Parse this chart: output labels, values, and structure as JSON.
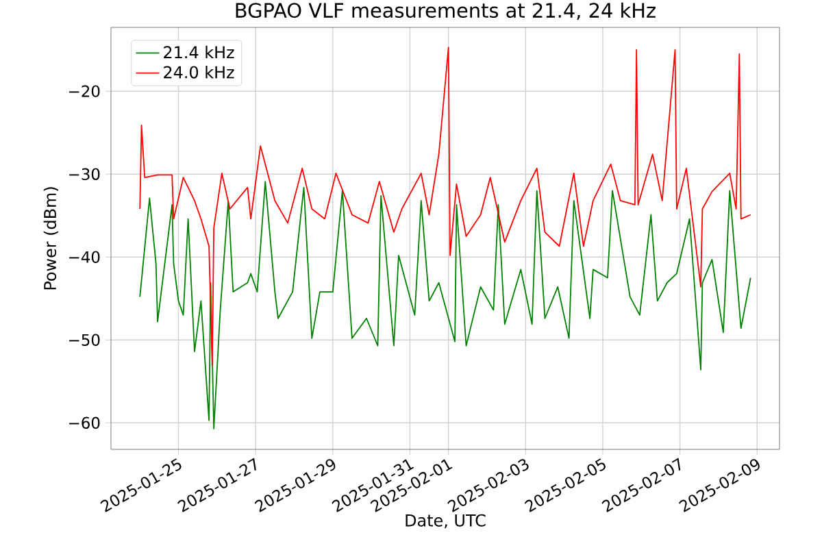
{
  "chart_data": {
    "type": "line",
    "title": "BGPAO VLF measurements at 21.4, 24 kHz",
    "xlabel": "Date, UTC",
    "ylabel": "Power (dBm)",
    "xlim": [
      "2025-01-23T06:00",
      "2025-02-09T14:00"
    ],
    "xticks": [
      "2025-01-25",
      "2025-01-27",
      "2025-01-29",
      "2025-01-31",
      "2025-02-01",
      "2025-02-03",
      "2025-02-05",
      "2025-02-07",
      "2025-02-09"
    ],
    "ylim": [
      -63.2,
      -12.3
    ],
    "yticks": [
      {
        "value": -60,
        "label": "−60"
      },
      {
        "value": -50,
        "label": "−50"
      },
      {
        "value": -40,
        "label": "−40"
      },
      {
        "value": -30,
        "label": "−30"
      },
      {
        "value": -20,
        "label": "−20"
      }
    ],
    "grid": true,
    "legend": "top left",
    "marker": "none",
    "line_style": "solid",
    "series": [
      {
        "name": "21.4 kHz",
        "color": "#008000",
        "x": [
          "2025-01-24T00:00",
          "2025-01-24T06:00",
          "2025-01-24T10:00",
          "2025-01-24T11:00",
          "2025-01-24T20:00",
          "2025-01-24T21:00",
          "2025-01-25T00:00",
          "2025-01-25T03:00",
          "2025-01-25T06:00",
          "2025-01-25T10:00",
          "2025-01-25T14:00",
          "2025-01-25T19:00",
          "2025-01-25T20:00",
          "2025-01-25T22:00",
          "2025-01-26T02:00",
          "2025-01-26T07:00",
          "2025-01-26T10:00",
          "2025-01-26T19:00",
          "2025-01-26T21:00",
          "2025-01-27T01:00",
          "2025-01-27T06:00",
          "2025-01-27T12:00",
          "2025-01-27T14:00",
          "2025-01-27T23:00",
          "2025-01-28T06:00",
          "2025-01-28T11:00",
          "2025-01-28T16:00",
          "2025-01-29T00:00",
          "2025-01-29T06:00",
          "2025-01-29T12:00",
          "2025-01-29T21:00",
          "2025-01-30T04:00",
          "2025-01-30T06:00",
          "2025-01-30T14:00",
          "2025-01-30T17:00",
          "2025-01-31T03:00",
          "2025-01-31T07:00",
          "2025-01-31T12:00",
          "2025-01-31T18:00",
          "2025-02-01T04:00",
          "2025-02-01T05:00",
          "2025-02-01T11:00",
          "2025-02-01T20:00",
          "2025-02-02T04:00",
          "2025-02-02T07:00",
          "2025-02-02T11:00",
          "2025-02-02T21:00",
          "2025-02-03T04:00",
          "2025-02-03T07:00",
          "2025-02-03T12:00",
          "2025-02-03T20:00",
          "2025-02-04T03:00",
          "2025-02-04T06:00",
          "2025-02-04T16:00",
          "2025-02-04T18:00",
          "2025-02-05T03:00",
          "2025-02-05T06:00",
          "2025-02-05T17:00",
          "2025-02-05T23:00",
          "2025-02-06T06:00",
          "2025-02-06T10:00",
          "2025-02-06T16:00",
          "2025-02-06T22:00",
          "2025-02-07T06:00",
          "2025-02-07T13:00",
          "2025-02-07T14:00",
          "2025-02-07T20:00",
          "2025-02-08T03:00",
          "2025-02-08T07:00",
          "2025-02-08T14:00",
          "2025-02-08T20:00"
        ],
        "values": [
          -44.8,
          -32.9,
          -40.8,
          -47.8,
          -33.7,
          -40.8,
          -45.3,
          -47,
          -35.4,
          -51.4,
          -45.3,
          -59.7,
          -43.1,
          -60.7,
          -46.4,
          -33.2,
          -44.2,
          -43.1,
          -42,
          -44.2,
          -30.9,
          -44.2,
          -47.4,
          -44.2,
          -31.6,
          -49.8,
          -44.2,
          -44.2,
          -32,
          -49.8,
          -47.4,
          -50.7,
          -32.6,
          -50.7,
          -39.8,
          -47,
          -33.2,
          -45.3,
          -43.1,
          -50.2,
          -33.7,
          -50.7,
          -43.6,
          -46.4,
          -33.7,
          -48.1,
          -41.5,
          -48.1,
          -32,
          -47.4,
          -43.6,
          -49.8,
          -33.2,
          -47.4,
          -41.5,
          -42.5,
          -32,
          -44.8,
          -47,
          -34.9,
          -45.3,
          -43.1,
          -42,
          -35.4,
          -53.6,
          -43.1,
          -40.3,
          -49.1,
          -32,
          -48.6,
          -42.5
        ]
      },
      {
        "name": "24.0 kHz",
        "color": "#ff0000",
        "x": [
          "2025-01-24T00:00",
          "2025-01-24T01:00",
          "2025-01-24T03:00",
          "2025-01-24T11:00",
          "2025-01-24T20:00",
          "2025-01-24T21:00",
          "2025-01-25T03:00",
          "2025-01-25T10:00",
          "2025-01-25T14:00",
          "2025-01-25T19:00",
          "2025-01-25T21:00",
          "2025-01-25T22:00",
          "2025-01-26T03:00",
          "2025-01-26T08:00",
          "2025-01-26T19:00",
          "2025-01-26T21:00",
          "2025-01-27T03:00",
          "2025-01-27T12:00",
          "2025-01-27T20:00",
          "2025-01-28T05:00",
          "2025-01-28T11:00",
          "2025-01-28T19:00",
          "2025-01-29T02:00",
          "2025-01-29T12:00",
          "2025-01-29T22:00",
          "2025-01-30T05:00",
          "2025-01-30T14:00",
          "2025-01-30T19:00",
          "2025-01-31T07:00",
          "2025-01-31T12:00",
          "2025-01-31T18:00",
          "2025-02-01T00:00",
          "2025-02-01T01:00",
          "2025-02-01T05:00",
          "2025-02-01T11:00",
          "2025-02-01T20:00",
          "2025-02-02T02:00",
          "2025-02-02T11:00",
          "2025-02-02T21:00",
          "2025-02-03T07:00",
          "2025-02-03T12:00",
          "2025-02-03T21:00",
          "2025-02-04T06:00",
          "2025-02-04T12:00",
          "2025-02-04T18:00",
          "2025-02-05T05:00",
          "2025-02-05T11:00",
          "2025-02-05T20:00",
          "2025-02-05T21:00",
          "2025-02-05T22:00",
          "2025-02-06T07:00",
          "2025-02-06T13:00",
          "2025-02-06T21:00",
          "2025-02-06T22:00",
          "2025-02-07T04:00",
          "2025-02-07T13:00",
          "2025-02-07T14:00",
          "2025-02-07T20:00",
          "2025-02-08T07:00",
          "2025-02-08T11:00",
          "2025-02-08T13:00",
          "2025-02-08T14:00",
          "2025-02-08T20:00"
        ],
        "values": [
          -34.2,
          -24.1,
          -30.4,
          -30.1,
          -30.1,
          -35.4,
          -30.4,
          -33.2,
          -35.4,
          -38.7,
          -53.1,
          -36.5,
          -29.9,
          -34.2,
          -31.6,
          -35.4,
          -26.6,
          -33.2,
          -35.9,
          -29.3,
          -34.2,
          -35.4,
          -29.9,
          -34.9,
          -35.9,
          -30.9,
          -37,
          -34.2,
          -29.9,
          -34.9,
          -27.6,
          -14.7,
          -39.8,
          -31.2,
          -37.5,
          -34.9,
          -30.4,
          -38.2,
          -33.2,
          -29.3,
          -37,
          -38.7,
          -29.9,
          -38.7,
          -33.2,
          -28.8,
          -33.2,
          -33.7,
          -15,
          -33.7,
          -27.6,
          -33.2,
          -15,
          -34.2,
          -29.3,
          -43.6,
          -34.2,
          -32.1,
          -29.9,
          -34.2,
          -15.5,
          -35.4,
          -34.9
        ]
      }
    ]
  }
}
